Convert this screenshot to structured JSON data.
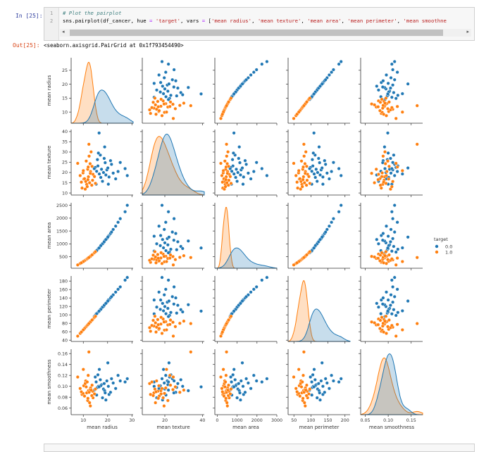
{
  "cell": {
    "in_prompt": "In [25]:",
    "line_numbers": [
      "1",
      "2"
    ],
    "line1": "# Plot the pairplot",
    "line2_tokens": [
      {
        "t": "sns.pairplot(df_cancer, hue ",
        "c": ""
      },
      {
        "t": "=",
        "c": "op"
      },
      {
        "t": " ",
        "c": ""
      },
      {
        "t": "'target'",
        "c": "st"
      },
      {
        "t": ", vars ",
        "c": ""
      },
      {
        "t": "=",
        "c": "op"
      },
      {
        "t": " [",
        "c": ""
      },
      {
        "t": "'mean radius'",
        "c": "st"
      },
      {
        "t": ", ",
        "c": ""
      },
      {
        "t": "'mean texture'",
        "c": "st"
      },
      {
        "t": ", ",
        "c": ""
      },
      {
        "t": "'mean area'",
        "c": "st"
      },
      {
        "t": ", ",
        "c": ""
      },
      {
        "t": "'mean perimeter'",
        "c": "st"
      },
      {
        "t": ", ",
        "c": ""
      },
      {
        "t": "'mean smoothne",
        "c": "st"
      }
    ],
    "scroll_left": "◂",
    "scroll_right": "▸"
  },
  "output": {
    "out_prompt": "Out[25]:",
    "text": "<seaborn.axisgrid.PairGrid at 0x1f793454490>"
  },
  "chart_data": {
    "type": "scatter",
    "subtype": "pairplot",
    "variables": [
      "mean radius",
      "mean texture",
      "mean area",
      "mean perimeter",
      "mean smoothness"
    ],
    "axes": [
      {
        "range": [
          5,
          30.5
        ],
        "xticks": [
          10,
          20,
          30
        ],
        "yticks": [
          10,
          15,
          20,
          25
        ],
        "yrange": [
          6,
          29.5
        ]
      },
      {
        "range": [
          8,
          41
        ],
        "xticks": [
          20,
          40
        ],
        "yticks": [
          10,
          15,
          20,
          25,
          30,
          35,
          40
        ],
        "yrange": [
          9,
          41
        ]
      },
      {
        "range": [
          -120,
          3000
        ],
        "xticks": [
          0,
          1000,
          2000,
          3000
        ],
        "yticks": [
          500,
          1000,
          1500,
          2000,
          2500
        ],
        "yrange": [
          50,
          2600
        ]
      },
      {
        "range": [
          33,
          215
        ],
        "xticks": [
          50,
          100,
          150,
          200
        ],
        "yticks": [
          40,
          60,
          80,
          100,
          120,
          140,
          160,
          180
        ],
        "yrange": [
          37,
          192
        ]
      },
      {
        "range": [
          0.04,
          0.175
        ],
        "xticks": [
          0.05,
          0.1,
          0.15
        ],
        "yticks": [
          0.06,
          0.08,
          0.1,
          0.12,
          0.14,
          0.16
        ],
        "yrange": [
          0.048,
          0.168
        ]
      }
    ],
    "tick_labels": {
      "x": [
        [
          "10",
          "20",
          "30"
        ],
        [
          "20",
          "40"
        ],
        [
          "0",
          "1000",
          "2000",
          "3000"
        ],
        [
          "50",
          "100",
          "150",
          "200"
        ],
        [
          "0.05",
          "0.10",
          "0.15"
        ]
      ],
      "y": [
        [
          "10",
          "15",
          "20",
          "25"
        ],
        [
          "10",
          "15",
          "20",
          "25",
          "30",
          "35",
          "40"
        ],
        [
          "500",
          "1000",
          "1500",
          "2000",
          "2500"
        ],
        [
          "40",
          "60",
          "80",
          "100",
          "120",
          "140",
          "160",
          "180"
        ],
        [
          "0.06",
          "0.08",
          "0.10",
          "0.12",
          "0.14",
          "0.16"
        ]
      ]
    },
    "diagonal": "kde",
    "grid": false,
    "legend": {
      "title": "target",
      "placement": "right",
      "entries": [
        "0.0",
        "1.0"
      ]
    },
    "colors": {
      "0.0": "#1f77b4",
      "1.0": "#ff7f0e"
    },
    "series": [
      {
        "name": "0.0",
        "points": [
          [
            17.5,
            21.6,
            960,
            115.4,
            0.103
          ],
          [
            20.6,
            17.8,
            1326,
            135.1,
            0.085
          ],
          [
            19.7,
            21.3,
            1203,
            130.0,
            0.11
          ],
          [
            15.3,
            14.3,
            716,
            102.4,
            0.108
          ],
          [
            20.3,
            14.3,
            1297,
            135.1,
            0.1
          ],
          [
            16.0,
            23.2,
            790,
            105.6,
            0.121
          ],
          [
            18.3,
            20.0,
            1041,
            119.6,
            0.095
          ],
          [
            21.2,
            25.8,
            1404,
            140.1,
            0.089
          ],
          [
            15.8,
            26.3,
            770,
            104.2,
            0.098
          ],
          [
            17.0,
            28.5,
            899,
            112.3,
            0.112
          ],
          [
            22.3,
            19.7,
            1560,
            147.3,
            0.106
          ],
          [
            14.9,
            22.5,
            680,
            98.6,
            0.117
          ],
          [
            18.8,
            32.5,
            1110,
            124.0,
            0.092
          ],
          [
            16.6,
            19.3,
            845,
            109.5,
            0.131
          ],
          [
            19.0,
            24.8,
            1140,
            125.5,
            0.088
          ],
          [
            23.3,
            16.9,
            1690,
            153.8,
            0.096
          ],
          [
            16.2,
            29.5,
            817,
            107.0,
            0.1
          ],
          [
            20.1,
            22.2,
            1263,
            132.7,
            0.143
          ],
          [
            17.9,
            15.7,
            1001,
            118.3,
            0.079
          ],
          [
            24.3,
            20.5,
            1840,
            160.5,
            0.12
          ],
          [
            15.5,
            20.6,
            736,
            102.7,
            0.084
          ],
          [
            18.6,
            26.9,
            1080,
            122.6,
            0.105
          ],
          [
            21.6,
            24.0,
            1460,
            143.0,
            0.114
          ],
          [
            17.2,
            17.6,
            930,
            113.0,
            0.101
          ],
          [
            25.2,
            24.9,
            1980,
            166.2,
            0.11
          ],
          [
            14.5,
            21.9,
            650,
            96.0,
            0.093
          ],
          [
            19.3,
            18.8,
            1170,
            127.2,
            0.075
          ],
          [
            27.2,
            21.9,
            2250,
            182.1,
            0.108
          ],
          [
            28.1,
            18.5,
            2500,
            188.5,
            0.114
          ],
          [
            16.5,
            39.3,
            840,
            108.9,
            0.099
          ]
        ]
      },
      {
        "name": "1.0",
        "points": [
          [
            12.1,
            17.9,
            450,
            78.1,
            0.092
          ],
          [
            11.4,
            14.2,
            402,
            73.5,
            0.088
          ],
          [
            13.0,
            20.5,
            520,
            83.9,
            0.097
          ],
          [
            10.2,
            16.8,
            322,
            65.8,
            0.101
          ],
          [
            9.5,
            12.4,
            280,
            61.2,
            0.085
          ],
          [
            14.0,
            19.1,
            602,
            90.2,
            0.079
          ],
          [
            12.8,
            24.3,
            505,
            82.5,
            0.094
          ],
          [
            11.0,
            15.6,
            375,
            70.9,
            0.11
          ],
          [
            13.5,
            13.8,
            560,
            87.0,
            0.083
          ],
          [
            8.7,
            18.5,
            235,
            56.1,
            0.096
          ],
          [
            12.4,
            28.0,
            475,
            80.0,
            0.089
          ],
          [
            11.8,
            21.6,
            430,
            76.1,
            0.074
          ],
          [
            10.8,
            11.9,
            360,
            69.6,
            0.105
          ],
          [
            13.8,
            16.2,
            585,
            88.9,
            0.091
          ],
          [
            12.0,
            22.7,
            445,
            77.4,
            0.12
          ],
          [
            9.9,
            19.8,
            302,
            63.8,
            0.087
          ],
          [
            14.6,
            18.0,
            655,
            94.1,
            0.086
          ],
          [
            11.2,
            25.6,
            388,
            72.2,
            0.099
          ],
          [
            12.6,
            15.0,
            490,
            81.2,
            0.07
          ],
          [
            7.7,
            24.5,
            180,
            49.6,
            0.117
          ],
          [
            13.2,
            30.1,
            538,
            85.1,
            0.093
          ],
          [
            10.5,
            17.0,
            340,
            67.7,
            0.082
          ],
          [
            11.6,
            13.1,
            415,
            74.8,
            0.108
          ],
          [
            12.9,
            19.6,
            512,
            83.2,
            0.064
          ],
          [
            15.0,
            14.7,
            695,
            96.7,
            0.095
          ],
          [
            10.0,
            20.9,
            310,
            64.5,
            0.131
          ],
          [
            11.9,
            16.5,
            438,
            76.7,
            0.078
          ],
          [
            13.6,
            23.0,
            570,
            87.7,
            0.102
          ],
          [
            9.2,
            15.3,
            262,
            59.3,
            0.09
          ],
          [
            12.3,
            33.8,
            468,
            79.3,
            0.163
          ]
        ]
      }
    ]
  }
}
